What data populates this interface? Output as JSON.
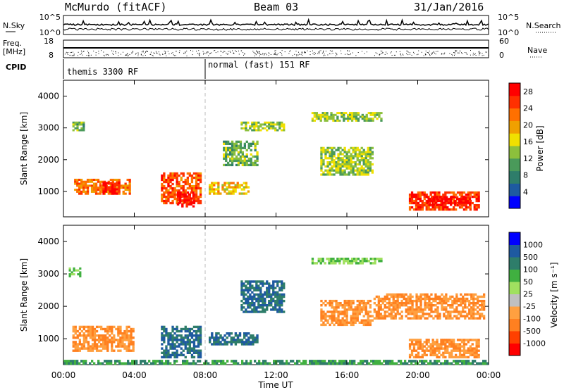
{
  "header": {
    "station": "McMurdo (fitACF)",
    "beam": "Beam 03",
    "date": "31/Jan/2016"
  },
  "strips": {
    "nsky_label": "N.Sky",
    "nsky_ticks": [
      "10^5",
      "10^0"
    ],
    "nsearch_label": "N.Search",
    "nsearch_ticks": [
      "10^5",
      "10^0"
    ],
    "freq_label": "Freq.",
    "freq_unit": "[MHz]",
    "freq_ticks": [
      "18",
      "8"
    ],
    "nave_label": "Nave",
    "nave_ticks": [
      "60",
      "0"
    ],
    "cpid_label": "CPID",
    "cpid_segments": [
      "themis 3300 RF",
      "normal (fast) 151 RF"
    ]
  },
  "colors": {
    "power_scale": [
      "#0000ff",
      "#1e5aa0",
      "#2e7d6a",
      "#4a9a5a",
      "#8cc03c",
      "#f0e000",
      "#f0a000",
      "#ff7000",
      "#ff3000",
      "#ff0000"
    ],
    "velocity_scale": [
      "#ff0000",
      "#ff4000",
      "#ff8020",
      "#ffa040",
      "#c0c0c0",
      "#a0e060",
      "#40b040",
      "#2e7d6a",
      "#1e5aa0",
      "#0000ff"
    ],
    "ground": "#808080"
  },
  "chart_data": [
    {
      "type": "heatmap",
      "ylabel": "Slant Range [km]",
      "yticks": [
        "1000",
        "2000",
        "3000",
        "4000"
      ],
      "xticks": [
        "00:00",
        "04:00",
        "08:00",
        "12:00",
        "16:00",
        "20:00",
        "00:00"
      ],
      "colorbar": {
        "label": "Power [dB]",
        "ticks": [
          "4",
          "8",
          "12",
          "16",
          "20",
          "24",
          "28"
        ],
        "ylim": [
          0,
          30
        ]
      },
      "xlim": [
        0,
        24
      ],
      "ylim": [
        200,
        4500
      ],
      "regions": [
        {
          "t0": 0.5,
          "t1": 1.2,
          "r0": 2900,
          "r1": 3200,
          "v": 12
        },
        {
          "t0": 0.6,
          "t1": 3.8,
          "r0": 900,
          "r1": 1400,
          "v": 22
        },
        {
          "t0": 2.2,
          "t1": 3.2,
          "r0": 900,
          "r1": 1300,
          "v": 28
        },
        {
          "t0": 5.5,
          "t1": 7.8,
          "r0": 600,
          "r1": 1600,
          "v": 24
        },
        {
          "t0": 6.4,
          "t1": 7.4,
          "r0": 500,
          "r1": 1000,
          "v": 28
        },
        {
          "t0": 8.2,
          "t1": 10.5,
          "r0": 900,
          "r1": 1300,
          "v": 18
        },
        {
          "t0": 9.0,
          "t1": 11.0,
          "r0": 1800,
          "r1": 2600,
          "v": 12
        },
        {
          "t0": 10.0,
          "t1": 12.5,
          "r0": 2900,
          "r1": 3200,
          "v": 14
        },
        {
          "t0": 14.0,
          "t1": 18.0,
          "r0": 3200,
          "r1": 3500,
          "v": 14
        },
        {
          "t0": 14.5,
          "t1": 17.5,
          "r0": 1500,
          "r1": 2400,
          "v": 14
        },
        {
          "t0": 19.5,
          "t1": 23.5,
          "r0": 400,
          "r1": 1000,
          "v": 26
        },
        {
          "t0": 20.5,
          "t1": 23.0,
          "r0": 550,
          "r1": 850,
          "v": 29
        }
      ]
    },
    {
      "type": "heatmap",
      "ylabel": "Slant Range [km]",
      "xlabel": "Time UT",
      "yticks": [
        "1000",
        "2000",
        "3000",
        "4000"
      ],
      "xticks": [
        "00:00",
        "04:00",
        "08:00",
        "12:00",
        "16:00",
        "20:00",
        "00:00"
      ],
      "colorbar": {
        "label": "Velocity [m s⁻¹]",
        "ticks": [
          "1000",
          "500",
          "100",
          "50",
          "25",
          "-25",
          "-100",
          "-500",
          "-1000"
        ]
      },
      "xlim": [
        0,
        24
      ],
      "ylim": [
        200,
        4500
      ],
      "regions": [
        {
          "t0": 0.3,
          "t1": 1.0,
          "r0": 2900,
          "r1": 3200,
          "v": 25
        },
        {
          "t0": 0.5,
          "t1": 4.0,
          "r0": 600,
          "r1": 1400,
          "v": -100
        },
        {
          "t0": 5.5,
          "t1": 7.8,
          "r0": 400,
          "r1": 1400,
          "v": 100
        },
        {
          "t0": 8.2,
          "t1": 11.0,
          "r0": 800,
          "r1": 1200,
          "v": 100
        },
        {
          "t0": 10.0,
          "t1": 12.5,
          "r0": 1800,
          "r1": 2800,
          "v": 100
        },
        {
          "t0": 14.0,
          "t1": 18.0,
          "r0": 3300,
          "r1": 3500,
          "v": 25
        },
        {
          "t0": 14.5,
          "t1": 17.5,
          "r0": 1400,
          "r1": 2200,
          "v": -100
        },
        {
          "t0": 17.5,
          "t1": 23.8,
          "r0": 1600,
          "r1": 2400,
          "v": -100
        },
        {
          "t0": 19.5,
          "t1": 23.5,
          "r0": 400,
          "r1": 1000,
          "v": -100
        },
        {
          "t0": 0.0,
          "t1": 24.0,
          "r0": 200,
          "r1": 350,
          "v": 50
        }
      ]
    }
  ]
}
